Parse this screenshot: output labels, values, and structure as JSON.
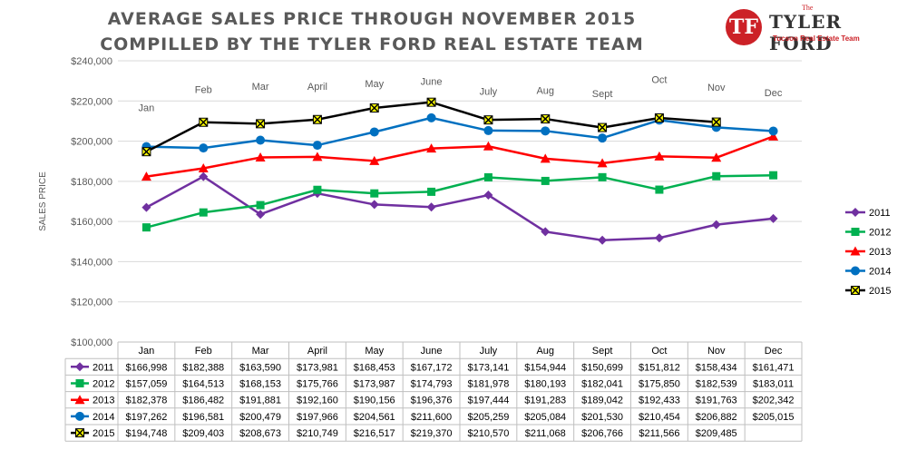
{
  "header": {
    "title_line1": "AVERAGE SALES PRICE THROUGH NOVEMBER 2015",
    "title_line2": "COMPILLED BY THE TYLER FORD REAL ESTATE TEAM"
  },
  "logo": {
    "mark": "TF",
    "the": "The",
    "name": "TYLER FORD",
    "sub": "Tucson Real Estate Team"
  },
  "colors": {
    "2011": "#7030a0",
    "2012": "#00b050",
    "2013": "#ff0000",
    "2014": "#0070c0",
    "2015": "#000000",
    "marker_2015": "#ffff00",
    "grid": "#d9d9d9",
    "axis_text": "#595959"
  },
  "chart_data": {
    "type": "line",
    "title": "AVERAGE SALES PRICE THROUGH NOVEMBER 2015",
    "subtitle": "COMPILLED BY THE TYLER FORD REAL ESTATE TEAM",
    "ylabel": "SALES PRICE",
    "xlabel": "",
    "ylim": [
      100000,
      240000
    ],
    "yticks": [
      "$100,000",
      "$120,000",
      "$140,000",
      "$160,000",
      "$180,000",
      "$200,000",
      "$220,000",
      "$240,000"
    ],
    "ytick_values": [
      100000,
      120000,
      140000,
      160000,
      180000,
      200000,
      220000,
      240000
    ],
    "grid": true,
    "legend": "right",
    "categories": [
      "Jan",
      "Feb",
      "Mar",
      "April",
      "May",
      "June",
      "July",
      "Aug",
      "Sept",
      "Oct",
      "Nov",
      "Dec"
    ],
    "series": [
      {
        "name": "2011",
        "marker": "diamond",
        "values": [
          166998,
          182388,
          163590,
          173981,
          168453,
          167172,
          173141,
          154944,
          150699,
          151812,
          158434,
          161471
        ],
        "labels": [
          "$166,998",
          "$182,388",
          "$163,590",
          "$173,981",
          "$168,453",
          "$167,172",
          "$173,141",
          "$154,944",
          "$150,699",
          "$151,812",
          "$158,434",
          "$161,471"
        ]
      },
      {
        "name": "2012",
        "marker": "square",
        "values": [
          157059,
          164513,
          168153,
          175766,
          173987,
          174793,
          181978,
          180193,
          182041,
          175850,
          182539,
          183011
        ],
        "labels": [
          "$157,059",
          "$164,513",
          "$168,153",
          "$175,766",
          "$173,987",
          "$174,793",
          "$181,978",
          "$180,193",
          "$182,041",
          "$175,850",
          "$182,539",
          "$183,011"
        ]
      },
      {
        "name": "2013",
        "marker": "triangle",
        "values": [
          182378,
          186482,
          191881,
          192160,
          190156,
          196376,
          197444,
          191283,
          189042,
          192433,
          191763,
          202342
        ],
        "labels": [
          "$182,378",
          "$186,482",
          "$191,881",
          "$192,160",
          "$190,156",
          "$196,376",
          "$197,444",
          "$191,283",
          "$189,042",
          "$192,433",
          "$191,763",
          "$202,342"
        ]
      },
      {
        "name": "2014",
        "marker": "circle",
        "values": [
          197262,
          196581,
          200479,
          197966,
          204561,
          211600,
          205259,
          205084,
          201530,
          210454,
          206882,
          205015
        ],
        "labels": [
          "$197,262",
          "$196,581",
          "$200,479",
          "$197,966",
          "$204,561",
          "$211,600",
          "$205,259",
          "$205,084",
          "$201,530",
          "$210,454",
          "$206,882",
          "$205,015"
        ]
      },
      {
        "name": "2015",
        "marker": "x-box",
        "values": [
          194748,
          209403,
          208673,
          210749,
          216517,
          219370,
          210570,
          211068,
          206766,
          211566,
          209485,
          null
        ],
        "labels": [
          "$194,748",
          "$209,403",
          "$208,673",
          "$210,749",
          "$216,517",
          "$219,370",
          "$210,570",
          "$211,068",
          "$206,766",
          "$211,566",
          "$209,485",
          ""
        ]
      }
    ],
    "annotations": [
      {
        "text": "Jan",
        "value": 215000
      },
      {
        "text": "Feb",
        "value": 224000
      },
      {
        "text": "Mar",
        "value": 225500
      },
      {
        "text": "April",
        "value": 225500
      },
      {
        "text": "May",
        "value": 227000
      },
      {
        "text": "June",
        "value": 228000
      },
      {
        "text": "July",
        "value": 223000
      },
      {
        "text": "Aug",
        "value": 223500
      },
      {
        "text": "Sept",
        "value": 222000
      },
      {
        "text": "Oct",
        "value": 229000
      },
      {
        "text": "Nov",
        "value": 225000
      },
      {
        "text": "Dec",
        "value": 222500
      }
    ]
  }
}
